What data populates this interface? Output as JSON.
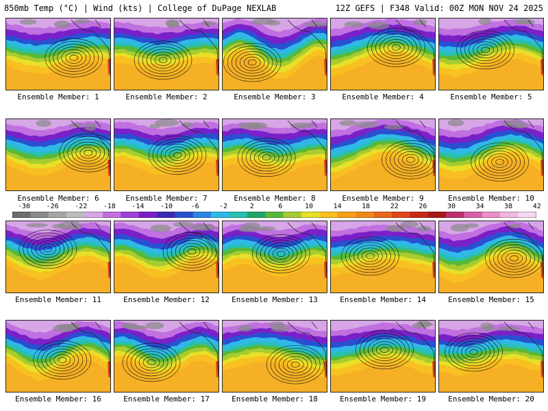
{
  "header": {
    "title_left": "850mb Temp (°C) | Wind (kts) | College of DuPage NEXLAB",
    "title_right": "12Z GEFS | F348 Valid: 00Z MON NOV 24 2025"
  },
  "members": [
    "Ensemble Member: 1",
    "Ensemble Member: 2",
    "Ensemble Member: 3",
    "Ensemble Member: 4",
    "Ensemble Member: 5",
    "Ensemble Member: 6",
    "Ensemble Member: 7",
    "Ensemble Member: 8",
    "Ensemble Member: 9",
    "Ensemble Member: 10",
    "Ensemble Member: 11",
    "Ensemble Member: 12",
    "Ensemble Member: 13",
    "Ensemble Member: 14",
    "Ensemble Member: 15",
    "Ensemble Member: 16",
    "Ensemble Member: 17",
    "Ensemble Member: 18",
    "Ensemble Member: 19",
    "Ensemble Member: 20"
  ],
  "colorbar": {
    "ticks": [
      "-30",
      "-26",
      "-22",
      "-18",
      "-14",
      "-10",
      "-6",
      "-2",
      "2",
      "6",
      "10",
      "14",
      "18",
      "22",
      "26",
      "30",
      "34",
      "38",
      "42"
    ],
    "colors": [
      "#6e6e6e",
      "#8a8a8a",
      "#a5a5a5",
      "#bdbdbd",
      "#d6a6e6",
      "#c070e0",
      "#a040d8",
      "#7a20c8",
      "#3c2ab4",
      "#2850d0",
      "#2a86e0",
      "#30b8e8",
      "#28c0b0",
      "#20a868",
      "#58b838",
      "#a8cc30",
      "#e8e028",
      "#f8c020",
      "#f8a018",
      "#f08818",
      "#e86818",
      "#e04818",
      "#c82818",
      "#a81818",
      "#c03070",
      "#d860a8",
      "#e890c8",
      "#f0b8e0",
      "#f8d8f0"
    ]
  }
}
